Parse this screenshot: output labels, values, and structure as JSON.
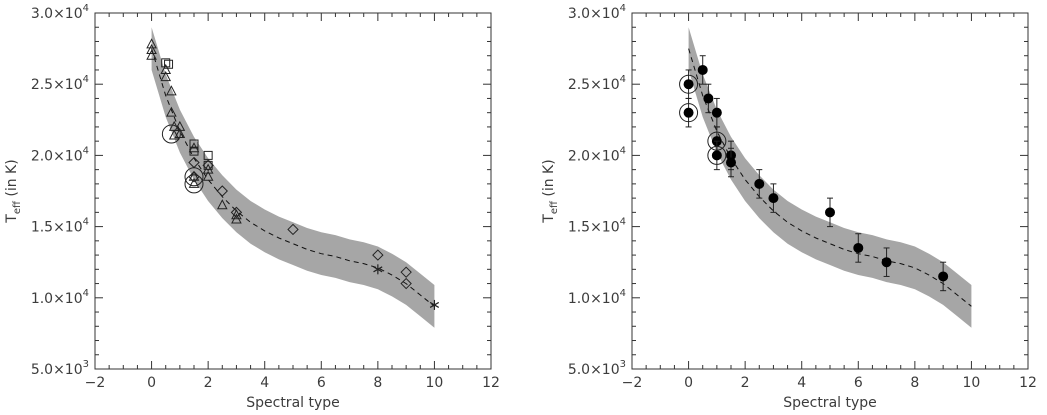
{
  "chart_data": [
    {
      "type": "scatter",
      "title": "",
      "xlabel": "Spectral type",
      "ylabel_main": "T",
      "ylabel_sub": "eff",
      "ylabel_rest": "(in K)",
      "xlim": [
        -2,
        12
      ],
      "ylim": [
        5000,
        30000
      ],
      "xticks": [
        -2,
        0,
        2,
        4,
        6,
        8,
        10,
        12
      ],
      "yticks": [
        {
          "value": 5000,
          "mant": "5.0×10",
          "exp": "3"
        },
        {
          "value": 10000,
          "mant": "1.0×10",
          "exp": "4"
        },
        {
          "value": 15000,
          "mant": "1.5×10",
          "exp": "4"
        },
        {
          "value": 20000,
          "mant": "2.0×10",
          "exp": "4"
        },
        {
          "value": 25000,
          "mant": "2.5×10",
          "exp": "4"
        },
        {
          "value": 30000,
          "mant": "3.0×10",
          "exp": "4"
        }
      ],
      "grid": false,
      "band": {
        "x": [
          0,
          0.5,
          1,
          1.5,
          2,
          2.5,
          3,
          3.5,
          4,
          4.5,
          5,
          5.5,
          6,
          6.5,
          7,
          7.5,
          8,
          8.5,
          9,
          9.5,
          10
        ],
        "center": [
          27500,
          24200,
          21700,
          19800,
          18300,
          17100,
          16100,
          15300,
          14700,
          14200,
          13800,
          13400,
          13100,
          12900,
          12600,
          12400,
          12100,
          11600,
          11000,
          10200,
          9400
        ],
        "halfwidth": 1500
      },
      "series": [
        {
          "marker": "triangle",
          "points": [
            [
              0,
              27800
            ],
            [
              0,
              27400
            ],
            [
              0,
              27000
            ],
            [
              0.5,
              26000
            ],
            [
              0.5,
              25500
            ],
            [
              0.7,
              24500
            ],
            [
              0.7,
              23000
            ],
            [
              0.8,
              22000
            ],
            [
              0.8,
              21400
            ],
            [
              1,
              21500
            ],
            [
              1,
              22000
            ],
            [
              1.5,
              20500
            ],
            [
              1.5,
              18000
            ],
            [
              1.5,
              18500
            ],
            [
              2,
              19000
            ],
            [
              2,
              18500
            ],
            [
              2.5,
              16500
            ],
            [
              3,
              15500
            ],
            [
              3,
              15800
            ]
          ]
        },
        {
          "marker": "square",
          "points": [
            [
              0.5,
              26500
            ],
            [
              0.6,
              26400
            ],
            [
              1.5,
              20800
            ],
            [
              1.5,
              20300
            ],
            [
              2,
              20000
            ],
            [
              2,
              19300
            ]
          ]
        },
        {
          "marker": "diamond",
          "points": [
            [
              1.5,
              19500
            ],
            [
              1.5,
              18500
            ],
            [
              2,
              19300
            ],
            [
              2.5,
              17500
            ],
            [
              3,
              16000
            ],
            [
              5,
              14800
            ],
            [
              8,
              13000
            ],
            [
              9,
              11800
            ],
            [
              9,
              11000
            ]
          ]
        },
        {
          "marker": "circle-ring",
          "points": [
            [
              0.7,
              21500
            ],
            [
              1.5,
              18500
            ],
            [
              1.5,
              18000
            ]
          ]
        },
        {
          "marker": "asterisk",
          "points": [
            [
              8,
              12000
            ],
            [
              10,
              9500
            ]
          ]
        }
      ]
    },
    {
      "type": "scatter",
      "title": "",
      "xlabel": "Spectral type",
      "ylabel_main": "T",
      "ylabel_sub": "eff",
      "ylabel_rest": "(in K)",
      "xlim": [
        -2,
        12
      ],
      "ylim": [
        5000,
        30000
      ],
      "xticks": [
        -2,
        0,
        2,
        4,
        6,
        8,
        10,
        12
      ],
      "yticks": [
        {
          "value": 5000,
          "mant": "5.0×10",
          "exp": "3"
        },
        {
          "value": 10000,
          "mant": "1.0×10",
          "exp": "4"
        },
        {
          "value": 15000,
          "mant": "1.5×10",
          "exp": "4"
        },
        {
          "value": 20000,
          "mant": "2.0×10",
          "exp": "4"
        },
        {
          "value": 25000,
          "mant": "2.5×10",
          "exp": "4"
        },
        {
          "value": 30000,
          "mant": "3.0×10",
          "exp": "4"
        }
      ],
      "grid": false,
      "band": {
        "x": [
          0,
          0.5,
          1,
          1.5,
          2,
          2.5,
          3,
          3.5,
          4,
          4.5,
          5,
          5.5,
          6,
          6.5,
          7,
          7.5,
          8,
          8.5,
          9,
          9.5,
          10
        ],
        "center": [
          27500,
          24200,
          21700,
          19800,
          18300,
          17100,
          16100,
          15300,
          14700,
          14200,
          13800,
          13400,
          13100,
          12900,
          12600,
          12400,
          12100,
          11600,
          11000,
          10200,
          9400
        ],
        "halfwidth": 1500
      },
      "series": [
        {
          "marker": "filled-circle",
          "points": [
            [
              0,
              25000,
              1000
            ],
            [
              0,
              23000,
              1000
            ],
            [
              0.5,
              26000,
              1000
            ],
            [
              0.7,
              24000,
              1000
            ],
            [
              1,
              23000,
              1000
            ],
            [
              1,
              21000,
              1000
            ],
            [
              1,
              20000,
              1000
            ],
            [
              1.5,
              20000,
              1000
            ],
            [
              1.5,
              19500,
              1000
            ],
            [
              2.5,
              18000,
              1000
            ],
            [
              3,
              17000,
              1000
            ],
            [
              5,
              16000,
              1000
            ],
            [
              6,
              13500,
              1000
            ],
            [
              7,
              12500,
              1000
            ],
            [
              9,
              11500,
              1000
            ]
          ]
        },
        {
          "marker": "circle-ring",
          "points": [
            [
              0,
              25000
            ],
            [
              0,
              23000
            ],
            [
              1,
              21000
            ],
            [
              1,
              20000
            ]
          ]
        }
      ]
    }
  ]
}
